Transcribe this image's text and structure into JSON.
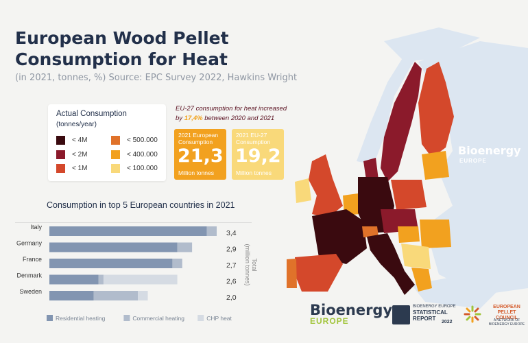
{
  "header": {
    "title": "European Wood Pellet\nConsumption for Heat",
    "subtitle": "(in 2021, tonnes, %) Source: EPC Survey 2022, Hawkins Wright"
  },
  "legend": {
    "title": "Actual Consumption",
    "unit": "(tonnes/year)",
    "items": [
      {
        "label": "< 4M",
        "color": "#3a0a0f"
      },
      {
        "label": "< 500.000",
        "color": "#e0722a"
      },
      {
        "label": "< 2M",
        "color": "#8b1a2b"
      },
      {
        "label": "< 400.000",
        "color": "#f2a11f"
      },
      {
        "label": "< 1M",
        "color": "#d4482b"
      },
      {
        "label": "< 100.000",
        "color": "#f9d97a"
      }
    ]
  },
  "note": {
    "line1": "EU-27 consumption for heat increased",
    "by": "by",
    "pct": "17,4%",
    "rest": "between 2020 and 2021"
  },
  "stats": [
    {
      "label": "2021 European Consumption",
      "value": "21,3",
      "unit": "Million tonnes",
      "color": "#f2a11f"
    },
    {
      "label": "2021 EU-27 Consumption",
      "value": "19,2",
      "unit": "Million tonnes",
      "color": "#f9d97a"
    }
  ],
  "chart_data": {
    "type": "bar",
    "orientation": "horizontal",
    "stacked": true,
    "title": "Consumption  in top 5 European countries  in 2021",
    "ylabel": "Total\n(million tonnes)",
    "categories": [
      "Italy",
      "Germany",
      "France",
      "Denmark",
      "Sweden"
    ],
    "totals": [
      "3,4",
      "2,9",
      "2,7",
      "2,6",
      "2,0"
    ],
    "total_values": [
      3.4,
      2.9,
      2.7,
      2.6,
      2.0
    ],
    "series": [
      {
        "name": "Residential heating",
        "color": "#8295b1",
        "values": [
          3.2,
          2.6,
          2.5,
          1.0,
          0.9
        ]
      },
      {
        "name": "Commercial heating",
        "color": "#b1bccc",
        "values": [
          0.2,
          0.3,
          0.2,
          0.1,
          0.9
        ]
      },
      {
        "name": "CHP heat",
        "color": "#d5dbe3",
        "values": [
          0.0,
          0.0,
          0.0,
          1.5,
          0.2
        ]
      }
    ],
    "xlim": [
      0,
      3.4
    ],
    "legend_position": "bottom"
  },
  "map": {
    "color_ocean": "#f4f4f2",
    "color_land_other": "#dce6f1"
  },
  "watermark": {
    "brand": "Bioenergy",
    "sub": "EUROPE"
  },
  "logos": {
    "bioenergy": "Bioenergy",
    "bioenergy_sub": "EUROPE",
    "report_small": "BIOENERGY EUROPE",
    "report_main": "STATISTICAL\nREPORT",
    "report_year": "2022",
    "council": "EUROPEAN PELLET\nCOUNCIL",
    "council_sub": "A NETWORK OF\nBIOENERGY EUROPE"
  }
}
